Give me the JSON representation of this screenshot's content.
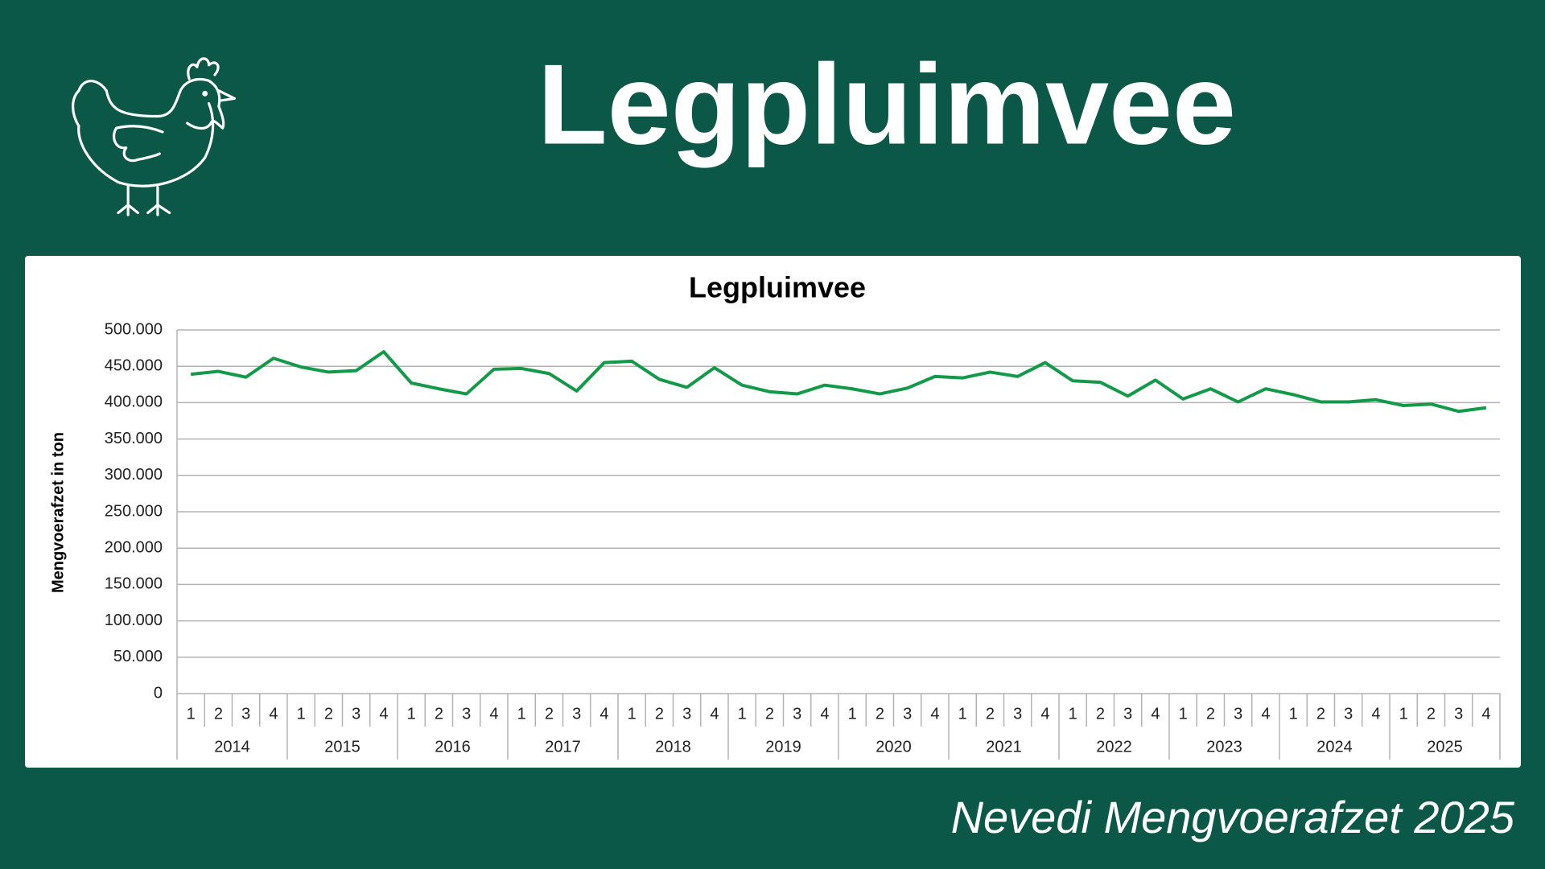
{
  "header": {
    "title": "Legpluimvee"
  },
  "footer": {
    "text": "Nevedi Mengvoerafzet 2025"
  },
  "chart_data": {
    "type": "line",
    "title": "Legpluimvee",
    "y_label": "Mengvoerafzet in ton",
    "categories": [
      "1",
      "2",
      "3",
      "4",
      "1",
      "2",
      "3",
      "4",
      "1",
      "2",
      "3",
      "4",
      "1",
      "2",
      "3",
      "4",
      "1",
      "2",
      "3",
      "4",
      "1",
      "2",
      "3",
      "4",
      "1",
      "2",
      "3",
      "4",
      "1",
      "2",
      "3",
      "4",
      "1",
      "2",
      "3",
      "4",
      "1",
      "2",
      "3",
      "4",
      "1",
      "2",
      "3",
      "4",
      "1",
      "2",
      "3",
      "4"
    ],
    "category_groups": [
      "2014",
      "2015",
      "2016",
      "2017",
      "2018",
      "2019",
      "2020",
      "2021",
      "2022",
      "2023",
      "2024",
      "2025"
    ],
    "series": [
      {
        "name": "Legpluimvee",
        "color": "#139a48",
        "values": [
          439000,
          443000,
          435000,
          461000,
          449000,
          442000,
          444000,
          470000,
          427000,
          419000,
          412000,
          446000,
          447000,
          440000,
          416000,
          455000,
          457000,
          432000,
          421000,
          448000,
          424000,
          415000,
          412000,
          424000,
          419000,
          412000,
          420000,
          436000,
          434000,
          442000,
          436000,
          455000,
          430000,
          428000,
          409000,
          431000,
          405000,
          419000,
          401000,
          419000,
          411000,
          401000,
          401000,
          404000,
          396000,
          398000,
          388000,
          393000
        ]
      }
    ],
    "ylim": [
      0,
      500000
    ],
    "yticks": [
      0,
      {
        "value": 50000,
        "label": "50.000"
      },
      {
        "value": 100000,
        "label": "100.000"
      },
      {
        "value": 150000,
        "label": "150.000"
      },
      {
        "value": 200000,
        "label": "200.000"
      },
      {
        "value": 250000,
        "label": "250.000"
      },
      {
        "value": 300000,
        "label": "300.000"
      },
      {
        "value": 350000,
        "label": "350.000"
      },
      {
        "value": 400000,
        "label": "400.000"
      },
      {
        "value": 450000,
        "label": "450.000"
      },
      {
        "value": 500000,
        "label": "500.000"
      }
    ],
    "grid": true
  }
}
